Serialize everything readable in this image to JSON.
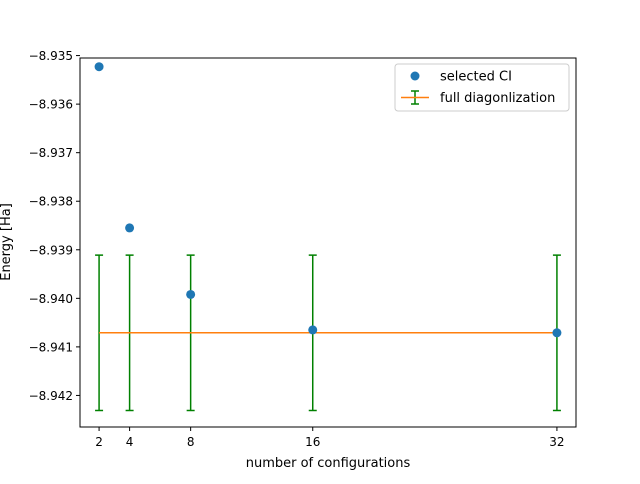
{
  "chart_data": {
    "type": "scatter",
    "xlabel": "number of configurations",
    "ylabel": "Energy [Ha]",
    "x_ticks": [
      2,
      4,
      8,
      16,
      32
    ],
    "y_ticks": [
      -8.942,
      -8.941,
      -8.94,
      -8.939,
      -8.938,
      -8.937,
      -8.936,
      -8.935
    ],
    "y_tick_labels": [
      "−8.942",
      "−8.941",
      "−8.940",
      "−8.939",
      "−8.938",
      "−8.937",
      "−8.936",
      "−8.935"
    ],
    "xlim": [
      0.75,
      33.25
    ],
    "ylim": [
      -8.94265,
      -8.93505
    ],
    "grid": false,
    "legend_position": "top-right",
    "series": [
      {
        "name": "selected CI",
        "kind": "scatter",
        "color": "#1f77b4",
        "x": [
          2,
          4,
          8,
          16,
          32
        ],
        "y": [
          -8.93523,
          -8.93855,
          -8.93992,
          -8.94065,
          -8.94071
        ]
      },
      {
        "name": "full diagonlization",
        "kind": "line-with-errorbars",
        "color": "#ff7f0e",
        "error_color": "#008000",
        "x": [
          2,
          4,
          8,
          16,
          32
        ],
        "y": [
          -8.94071,
          -8.94071,
          -8.94071,
          -8.94071,
          -8.94071
        ],
        "error": [
          0.0016,
          0.0016,
          0.0016,
          0.0016,
          0.0016
        ]
      }
    ]
  }
}
